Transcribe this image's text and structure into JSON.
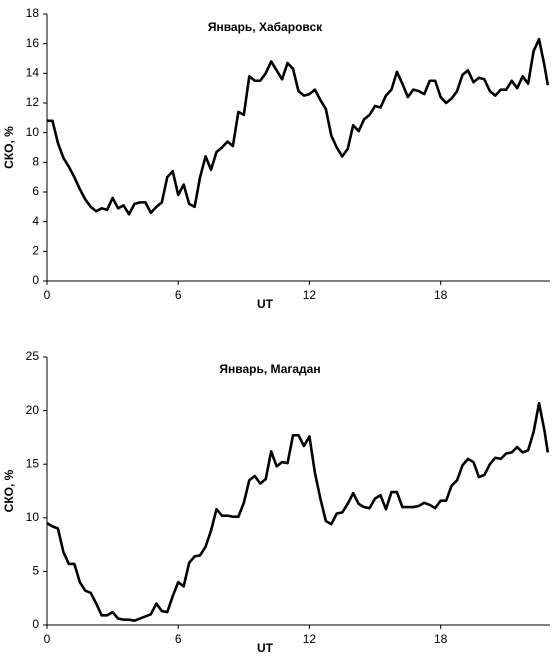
{
  "chart_data": [
    {
      "type": "line",
      "title": "Январь, Хабаровск",
      "xlabel": "UT",
      "ylabel": "СКО, %",
      "xlim": [
        0,
        23
      ],
      "ylim": [
        0,
        18
      ],
      "xticks": [
        0,
        6,
        12,
        18
      ],
      "yticks": [
        0,
        2,
        4,
        6,
        8,
        10,
        12,
        14,
        16,
        18
      ],
      "grid": false,
      "x": [
        0,
        0.25,
        0.5,
        0.75,
        1,
        1.25,
        1.5,
        1.75,
        2,
        2.25,
        2.5,
        2.75,
        3,
        3.25,
        3.5,
        3.75,
        4,
        4.25,
        4.5,
        4.75,
        5,
        5.25,
        5.5,
        5.75,
        6,
        6.25,
        6.5,
        6.75,
        7,
        7.25,
        7.5,
        7.75,
        8,
        8.25,
        8.5,
        8.75,
        9,
        9.25,
        9.5,
        9.75,
        10,
        10.25,
        10.5,
        10.75,
        11,
        11.25,
        11.5,
        11.75,
        12,
        12.25,
        12.5,
        12.75,
        13,
        13.25,
        13.5,
        13.75,
        14,
        14.25,
        14.5,
        14.75,
        15,
        15.25,
        15.5,
        15.75,
        16,
        16.25,
        16.5,
        16.75,
        17,
        17.25,
        17.5,
        17.75,
        18,
        18.25,
        18.5,
        18.75,
        19,
        19.25,
        19.5,
        19.75,
        20,
        20.25,
        20.5,
        20.75,
        21,
        21.25,
        21.5,
        21.75,
        22,
        22.25,
        22.5,
        22.75,
        22.9
      ],
      "series": [
        {
          "color": "#000000",
          "values": [
            10.8,
            10.8,
            9.3,
            8.3,
            7.7,
            7.0,
            6.2,
            5.5,
            5.0,
            4.7,
            4.9,
            4.8,
            5.6,
            4.9,
            5.1,
            4.5,
            5.2,
            5.3,
            5.3,
            4.6,
            5.0,
            5.3,
            7.0,
            7.4,
            5.8,
            6.5,
            5.2,
            5.0,
            7.0,
            8.4,
            7.5,
            8.7,
            9.0,
            9.4,
            9.1,
            11.4,
            11.2,
            13.8,
            13.5,
            13.5,
            14.0,
            14.8,
            14.2,
            13.6,
            14.7,
            14.3,
            12.8,
            12.5,
            12.6,
            12.9,
            12.2,
            11.6,
            9.8,
            9.0,
            8.4,
            8.9,
            10.5,
            10.1,
            10.9,
            11.2,
            11.8,
            11.7,
            12.5,
            12.9,
            14.1,
            13.3,
            12.4,
            12.9,
            12.8,
            12.6,
            13.5,
            13.5,
            12.4,
            12.0,
            12.3,
            12.8,
            13.9,
            14.2,
            13.4,
            13.7,
            13.6,
            12.8,
            12.5,
            12.9,
            12.9,
            13.5,
            13.0,
            13.8,
            13.3,
            15.5,
            16.3,
            14.5,
            13.2
          ]
        }
      ]
    },
    {
      "type": "line",
      "title": "Январь, Магадан",
      "xlabel": "UT",
      "ylabel": "СКО, %",
      "xlim": [
        0,
        23
      ],
      "ylim": [
        0,
        25
      ],
      "xticks": [
        0,
        6,
        12,
        18
      ],
      "yticks": [
        0,
        5,
        10,
        15,
        20,
        25
      ],
      "grid": false,
      "x": [
        0,
        0.25,
        0.5,
        0.75,
        1,
        1.25,
        1.5,
        1.75,
        2,
        2.25,
        2.5,
        2.75,
        3,
        3.25,
        3.5,
        3.75,
        4,
        4.25,
        4.5,
        4.75,
        5,
        5.25,
        5.5,
        5.75,
        6,
        6.25,
        6.5,
        6.75,
        7,
        7.25,
        7.5,
        7.75,
        8,
        8.25,
        8.5,
        8.75,
        9,
        9.25,
        9.5,
        9.75,
        10,
        10.25,
        10.5,
        10.75,
        11,
        11.25,
        11.5,
        11.75,
        12,
        12.25,
        12.5,
        12.75,
        13,
        13.25,
        13.5,
        13.75,
        14,
        14.25,
        14.5,
        14.75,
        15,
        15.25,
        15.5,
        15.75,
        16,
        16.25,
        16.5,
        16.75,
        17,
        17.25,
        17.5,
        17.75,
        18,
        18.25,
        18.5,
        18.75,
        19,
        19.25,
        19.5,
        19.75,
        20,
        20.25,
        20.5,
        20.75,
        21,
        21.25,
        21.5,
        21.75,
        22,
        22.25,
        22.5,
        22.75,
        22.9
      ],
      "series": [
        {
          "color": "#000000",
          "values": [
            9.5,
            9.2,
            9.0,
            6.8,
            5.7,
            5.7,
            4.0,
            3.2,
            3.0,
            2.0,
            0.9,
            0.9,
            1.2,
            0.6,
            0.5,
            0.5,
            0.4,
            0.6,
            0.8,
            1.0,
            2.0,
            1.3,
            1.2,
            2.7,
            4.0,
            3.6,
            5.8,
            6.4,
            6.5,
            7.3,
            8.8,
            10.8,
            10.2,
            10.2,
            10.1,
            10.1,
            11.4,
            13.5,
            13.9,
            13.2,
            13.6,
            16.2,
            14.8,
            15.2,
            15.1,
            17.7,
            17.7,
            16.7,
            17.6,
            14.2,
            11.8,
            9.7,
            9.4,
            10.4,
            10.5,
            11.3,
            12.3,
            11.3,
            11.0,
            10.9,
            11.8,
            12.1,
            10.8,
            12.4,
            12.4,
            11.0,
            11.0,
            11.0,
            11.1,
            11.4,
            11.2,
            10.9,
            11.6,
            11.6,
            13.0,
            13.5,
            14.9,
            15.5,
            15.2,
            13.8,
            14.0,
            15.0,
            15.6,
            15.5,
            16.0,
            16.1,
            16.6,
            16.1,
            16.3,
            18.0,
            20.7,
            18.1,
            16.1
          ]
        }
      ]
    }
  ]
}
